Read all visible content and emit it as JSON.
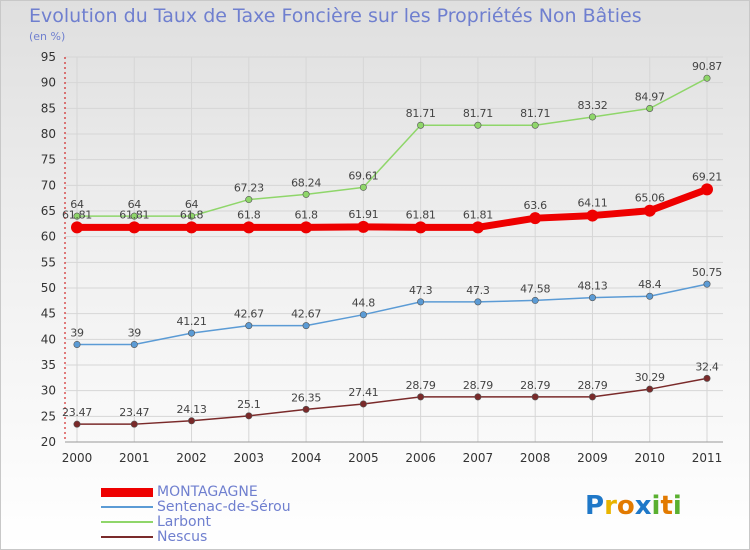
{
  "header": {
    "title": "Evolution du Taux de Taxe Foncière sur les Propriétés Non Bâties",
    "unit": "(en %)"
  },
  "colors": {
    "title": "#6f7fcf",
    "montagagne": "#ee0000",
    "sentenac": "#5b9bd5",
    "larbont": "#8fd66a",
    "nescus": "#7a2a2a"
  },
  "chart_data": {
    "type": "line",
    "x": [
      "2000",
      "2001",
      "2002",
      "2003",
      "2004",
      "2005",
      "2006",
      "2007",
      "2008",
      "2009",
      "2010",
      "2011"
    ],
    "ylim": [
      20,
      95
    ],
    "yticks": [
      20,
      25,
      30,
      35,
      40,
      45,
      50,
      55,
      60,
      65,
      70,
      75,
      80,
      85,
      90,
      95
    ],
    "grid": true,
    "legend_position": "bottom-left",
    "series": [
      {
        "name": "MONTAGAGNE",
        "color": "#ee0000",
        "values": [
          61.81,
          61.81,
          61.8,
          61.8,
          61.8,
          61.91,
          61.81,
          61.81,
          63.6,
          64.11,
          65.06,
          69.21
        ],
        "labels": [
          "61.81",
          "61.81",
          "61.8",
          "61.8",
          "61.8",
          "61.91",
          "61.81",
          "61.81",
          "63.6",
          "64.11",
          "65.06",
          "69.21"
        ]
      },
      {
        "name": "Sentenac-de-Sérou",
        "color": "#5b9bd5",
        "values": [
          39,
          39,
          41.21,
          42.67,
          42.67,
          44.8,
          47.3,
          47.3,
          47.58,
          48.13,
          48.4,
          50.75
        ],
        "labels": [
          "39",
          "39",
          "41.21",
          "42.67",
          "42.67",
          "44.8",
          "47.3",
          "47.3",
          "47.58",
          "48.13",
          "48.4",
          "50.75"
        ]
      },
      {
        "name": "Larbont",
        "color": "#8fd66a",
        "values": [
          64,
          64,
          64,
          67.23,
          68.24,
          69.61,
          81.71,
          81.71,
          81.71,
          83.32,
          84.97,
          90.87
        ],
        "labels": [
          "64",
          "64",
          "64",
          "67.23",
          "68.24",
          "69.61",
          "81.71",
          "81.71",
          "81.71",
          "83.32",
          "84.97",
          "90.87"
        ]
      },
      {
        "name": "Nescus",
        "color": "#7a2a2a",
        "values": [
          23.47,
          23.47,
          24.13,
          25.1,
          26.35,
          27.41,
          28.79,
          28.79,
          28.79,
          28.79,
          30.29,
          32.4
        ],
        "labels": [
          "23.47",
          "23.47",
          "24.13",
          "25.1",
          "26.35",
          "27.41",
          "28.79",
          "28.79",
          "28.79",
          "28.79",
          "30.29",
          "32.4"
        ]
      }
    ]
  },
  "legend": {
    "items": [
      {
        "label": "MONTAGAGNE",
        "color": "#ee0000"
      },
      {
        "label": "Sentenac-de-Sérou",
        "color": "#5b9bd5"
      },
      {
        "label": "Larbont",
        "color": "#8fd66a"
      },
      {
        "label": "Nescus",
        "color": "#7a2a2a"
      }
    ]
  },
  "logo": {
    "letters": [
      "P",
      "r",
      "o",
      "x",
      "i",
      "t",
      "i"
    ],
    "colors": [
      "#1f78c8",
      "#e8b400",
      "#e27a00",
      "#1f78c8",
      "#5ab030",
      "#e27a00",
      "#5ab030"
    ]
  }
}
